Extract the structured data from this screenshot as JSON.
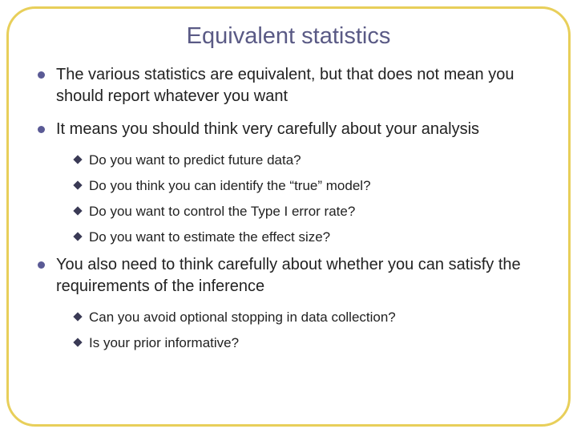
{
  "slide": {
    "title": "Equivalent statistics",
    "title_color": "#5a5a85",
    "title_fontsize": 29,
    "border_color": "#e8cf5a",
    "border_radius": 36,
    "background_color": "#ffffff",
    "bullet_color": "#5a5a95",
    "diamond_color": "#3a3a55",
    "body_fontsize": 20,
    "sub_fontsize": 17,
    "items": [
      {
        "text": "The various statistics are equivalent, but that does not mean you should report whatever you want",
        "sub": []
      },
      {
        "text": "It means you should think very carefully about your analysis",
        "sub": [
          "Do you want to predict future data?",
          "Do you think you can identify the “true” model?",
          "Do you want to control the Type I error rate?",
          "Do you want to estimate the effect size?"
        ]
      },
      {
        "text": "You also need to think carefully about whether you can satisfy the requirements of the inference",
        "sub": [
          "Can you avoid optional stopping in data collection?",
          "Is your prior informative?"
        ]
      }
    ]
  }
}
